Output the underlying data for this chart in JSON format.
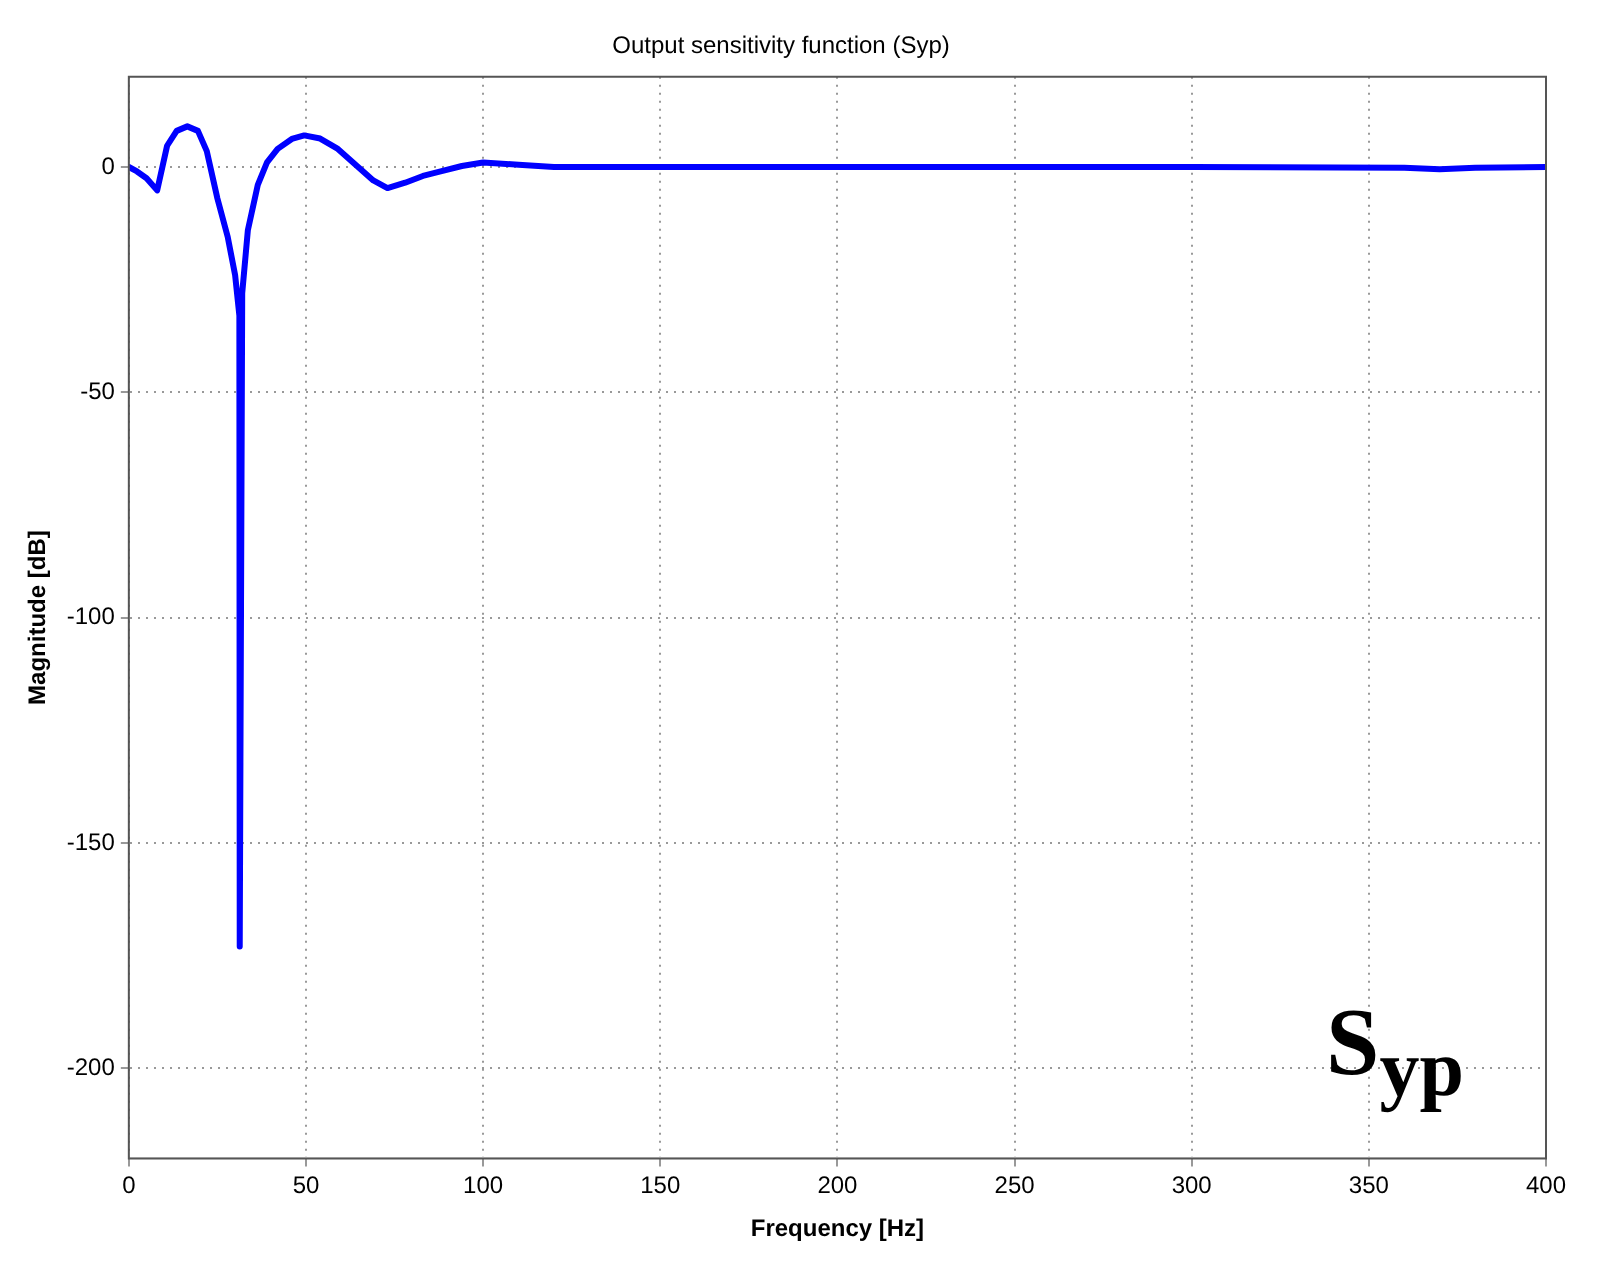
{
  "chart_data": {
    "type": "line",
    "title": "Output sensitivity function (Syp)",
    "xlabel": "Frequency [Hz]",
    "ylabel": "Magnitude [dB]",
    "annotations": [
      "S$_{yp}$"
    ],
    "series": [
      {
        "color": "#0000ff",
        "x": [
          0,
          2.3,
          5,
          8,
          10.8,
          13.5,
          16.5,
          19.5,
          22,
          25,
          27.9,
          30,
          31.2,
          31.3,
          32,
          33.6,
          36.4,
          39,
          42,
          46,
          49.5,
          54,
          59,
          64,
          69,
          73,
          78,
          83,
          88,
          94,
          100,
          110,
          120,
          140,
          200,
          300,
          360,
          370,
          380,
          400
        ],
        "values": [
          0,
          -1,
          -2.5,
          -5.2,
          4.7,
          8,
          9,
          8,
          3.5,
          -7,
          -15.5,
          -24,
          -33,
          -173,
          -28,
          -14,
          -4,
          1,
          4,
          6.2,
          7,
          6.3,
          4,
          0.5,
          -3,
          -4.7,
          -3.5,
          -2,
          -1,
          0.2,
          1,
          0.5,
          0,
          0,
          0,
          0,
          -0.2,
          -0.5,
          -0.2,
          0
        ]
      }
    ],
    "xlim": [
      0,
      400
    ],
    "xticks": [
      0,
      50,
      100,
      150,
      200,
      250,
      300,
      350,
      400
    ],
    "ylim": [
      -220,
      20
    ],
    "yticks": [
      -200,
      -150,
      -100,
      -50,
      0
    ],
    "grid": true,
    "legend": false,
    "marker": "none",
    "line_style": "solid"
  }
}
